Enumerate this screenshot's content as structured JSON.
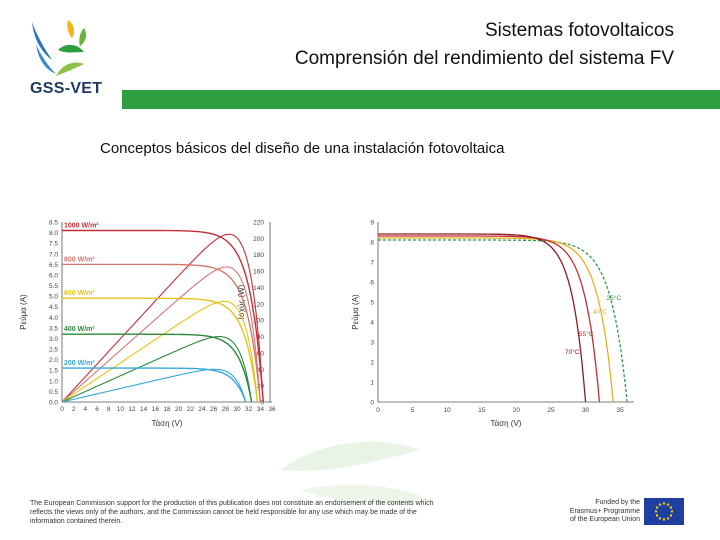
{
  "header": {
    "logo_text": "GSS-VET",
    "title_line1": "Sistemas fotovoltaicos",
    "title_line2": "Comprensión del rendimiento del sistema FV",
    "accent_color": "#2e9e3f"
  },
  "main": {
    "subtitle": "Conceptos básicos del diseño de una instalación fotovoltaica"
  },
  "chart_data": [
    {
      "type": "line",
      "title": "",
      "xlabel": "Τάση (V)",
      "ylabel": "Ρεύμα (A)",
      "y2label": "Ισχύς (W)",
      "xlim": [
        0,
        36
      ],
      "ylim": [
        0,
        8.5
      ],
      "y2lim": [
        0,
        220
      ],
      "x_ticks": [
        0,
        2,
        4,
        6,
        8,
        10,
        12,
        14,
        16,
        18,
        20,
        22,
        24,
        26,
        28,
        30,
        32,
        34,
        36
      ],
      "y_ticks": [
        "0.0",
        "0.5",
        "1.0",
        "1.5",
        "2.0",
        "2.5",
        "3.0",
        "3.5",
        "4.0",
        "4.5",
        "5.0",
        "5.5",
        "6.0",
        "6.5",
        "7.0",
        "7.5",
        "8.0",
        "8.5"
      ],
      "y2_ticks": [
        0,
        20,
        40,
        60,
        80,
        100,
        120,
        140,
        160,
        180,
        200,
        220
      ],
      "series": [
        {
          "name": "1000 W/m²",
          "color": "#c0303a",
          "isc": 8.1,
          "voc": 34.5,
          "pmax": 205,
          "vmp": 28.5
        },
        {
          "name": "800 W/m²",
          "color": "#d4776f",
          "isc": 6.5,
          "voc": 34.0,
          "pmax": 165,
          "vmp": 28.5
        },
        {
          "name": "600 W/m²",
          "color": "#e8c21a",
          "isc": 4.9,
          "voc": 33.5,
          "pmax": 123,
          "vmp": 28.0
        },
        {
          "name": "400 W/m²",
          "color": "#2a8a3a",
          "isc": 3.2,
          "voc": 32.5,
          "pmax": 80,
          "vmp": 28.0
        },
        {
          "name": "200 W/m²",
          "color": "#35a8d8",
          "isc": 1.6,
          "voc": 31.5,
          "pmax": 40,
          "vmp": 27.5
        }
      ]
    },
    {
      "type": "line",
      "title": "",
      "xlabel": "Τάση (V)",
      "ylabel": "Ρεύμα (A)",
      "xlim": [
        0,
        37
      ],
      "ylim": [
        0,
        9
      ],
      "x_ticks": [
        0,
        5,
        10,
        15,
        20,
        25,
        30,
        35
      ],
      "y_ticks": [
        0,
        1,
        2,
        3,
        4,
        5,
        6,
        7,
        8,
        9
      ],
      "series": [
        {
          "name": "25°C",
          "color": "#2a9a4a",
          "isc": 8.1,
          "voc": 36.0
        },
        {
          "name": "40°C",
          "color": "#e8b020",
          "isc": 8.2,
          "voc": 34.0
        },
        {
          "name": "55°C",
          "color": "#c03030",
          "isc": 8.3,
          "voc": 32.0
        },
        {
          "name": "70°C",
          "color": "#8a1a2a",
          "isc": 8.4,
          "voc": 30.0
        }
      ]
    }
  ],
  "footer": {
    "disclaimer": "The European Commission support for the production of this publication does not constitute an endorsement of the contents which reflects the views only of the authors, and the Commission cannot be held responsible for any use which may be made of the information contained therein.",
    "funded_line1": "Funded by the",
    "funded_line2": "Erasmus+ Programme",
    "funded_line3": "of the European Union"
  }
}
